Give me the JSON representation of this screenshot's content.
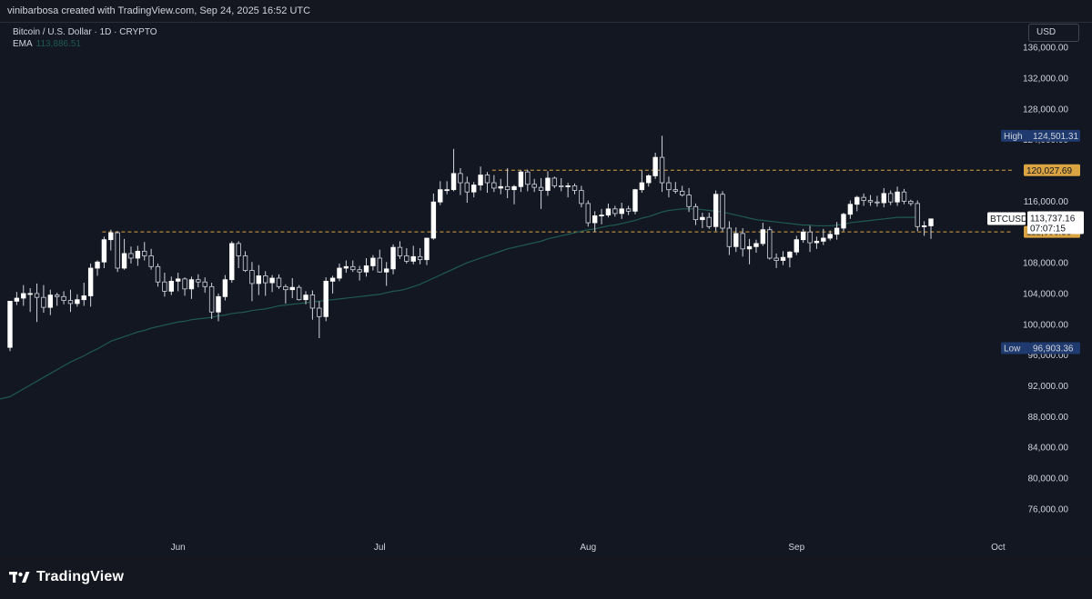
{
  "header": {
    "attribution": "vinibarbosa created with TradingView.com, Sep 24, 2025 16:52 UTC"
  },
  "legend": {
    "symbol_line": "Bitcoin / U.S. Dollar · 1D · CRYPTO",
    "ema_label": "EMA",
    "ema_value": "113,886.51"
  },
  "currency_button": "USD",
  "footer": {
    "logo_text": "TradingView"
  },
  "colors": {
    "background": "#131722",
    "candle_up": "#ffffff",
    "candle_down": "#131722",
    "candle_border": "#d1d4dc",
    "ema": "#1f5a52",
    "level_line": "#d9a441",
    "high_low_badge": "#1e3a6e"
  },
  "chart_data": {
    "type": "candlestick",
    "symbol": "BTCUSD",
    "interval": "1D",
    "ylim": [
      72800,
      139200
    ],
    "yticks": [
      76000,
      80000,
      84000,
      88000,
      92000,
      96000,
      100000,
      104000,
      108000,
      112000,
      116000,
      120000,
      124000,
      128000,
      132000,
      136000
    ],
    "ytick_labels": [
      "76,000.00",
      "80,000.00",
      "84,000.00",
      "88,000.00",
      "92,000.00",
      "96,000.00",
      "100,000.00",
      "104,000.00",
      "108,000.00",
      "112,000.00",
      "116,000.00",
      "120,000.00",
      "124,000.00",
      "128,000.00",
      "132,000.00",
      "136,000.00"
    ],
    "x_ticks": [
      "Jun",
      "Jul",
      "Aug",
      "Sep",
      "Oct"
    ],
    "x_tick_index": [
      25,
      55,
      86,
      117,
      147
    ],
    "candles": [
      {
        "o": 97000,
        "h": 103000,
        "l": 96500,
        "c": 103000
      },
      {
        "o": 103000,
        "h": 104200,
        "l": 102500,
        "c": 103400
      },
      {
        "o": 103400,
        "h": 105100,
        "l": 102400,
        "c": 104000
      },
      {
        "o": 104000,
        "h": 104700,
        "l": 101600,
        "c": 104000
      },
      {
        "o": 104000,
        "h": 105300,
        "l": 100300,
        "c": 103500
      },
      {
        "o": 103500,
        "h": 105100,
        "l": 101500,
        "c": 102200
      },
      {
        "o": 102200,
        "h": 104500,
        "l": 101200,
        "c": 103800
      },
      {
        "o": 103800,
        "h": 104100,
        "l": 102400,
        "c": 103600
      },
      {
        "o": 103600,
        "h": 104300,
        "l": 102600,
        "c": 103100
      },
      {
        "o": 103100,
        "h": 104500,
        "l": 101600,
        "c": 102700
      },
      {
        "o": 102700,
        "h": 103900,
        "l": 102300,
        "c": 103200
      },
      {
        "o": 103200,
        "h": 105400,
        "l": 102400,
        "c": 103700
      },
      {
        "o": 103700,
        "h": 107900,
        "l": 102300,
        "c": 107300
      },
      {
        "o": 107300,
        "h": 108300,
        "l": 106300,
        "c": 108100
      },
      {
        "o": 108100,
        "h": 111400,
        "l": 107300,
        "c": 111000
      },
      {
        "o": 111000,
        "h": 112300,
        "l": 109600,
        "c": 111900
      },
      {
        "o": 111900,
        "h": 112100,
        "l": 106800,
        "c": 107300
      },
      {
        "o": 107300,
        "h": 111100,
        "l": 107100,
        "c": 109200
      },
      {
        "o": 109200,
        "h": 110100,
        "l": 107900,
        "c": 108600
      },
      {
        "o": 108600,
        "h": 110200,
        "l": 107600,
        "c": 109500
      },
      {
        "o": 109500,
        "h": 110700,
        "l": 108300,
        "c": 108900
      },
      {
        "o": 108900,
        "h": 109800,
        "l": 107100,
        "c": 107500
      },
      {
        "o": 107500,
        "h": 107900,
        "l": 104900,
        "c": 105500
      },
      {
        "o": 105500,
        "h": 106700,
        "l": 103600,
        "c": 104300
      },
      {
        "o": 104300,
        "h": 106200,
        "l": 103800,
        "c": 105600
      },
      {
        "o": 105600,
        "h": 106700,
        "l": 104300,
        "c": 105900
      },
      {
        "o": 105900,
        "h": 106100,
        "l": 103700,
        "c": 104600
      },
      {
        "o": 104600,
        "h": 106200,
        "l": 103300,
        "c": 105800
      },
      {
        "o": 105800,
        "h": 106500,
        "l": 104800,
        "c": 105500
      },
      {
        "o": 105500,
        "h": 106100,
        "l": 104100,
        "c": 104900
      },
      {
        "o": 104900,
        "h": 105400,
        "l": 100700,
        "c": 101600
      },
      {
        "o": 101600,
        "h": 104000,
        "l": 100400,
        "c": 103600
      },
      {
        "o": 103600,
        "h": 106400,
        "l": 103100,
        "c": 105800
      },
      {
        "o": 105800,
        "h": 110800,
        "l": 105400,
        "c": 110500
      },
      {
        "o": 110500,
        "h": 110800,
        "l": 107300,
        "c": 108900
      },
      {
        "o": 108900,
        "h": 109500,
        "l": 106800,
        "c": 107000
      },
      {
        "o": 107000,
        "h": 108100,
        "l": 103000,
        "c": 105300
      },
      {
        "o": 105300,
        "h": 107700,
        "l": 103800,
        "c": 106300
      },
      {
        "o": 106300,
        "h": 106900,
        "l": 103700,
        "c": 105400
      },
      {
        "o": 105400,
        "h": 106400,
        "l": 104200,
        "c": 106000
      },
      {
        "o": 106000,
        "h": 106500,
        "l": 104600,
        "c": 104900
      },
      {
        "o": 104900,
        "h": 105200,
        "l": 102700,
        "c": 104500
      },
      {
        "o": 104500,
        "h": 106000,
        "l": 103400,
        "c": 104800
      },
      {
        "o": 104800,
        "h": 105100,
        "l": 103100,
        "c": 103200
      },
      {
        "o": 103200,
        "h": 104300,
        "l": 102600,
        "c": 103800
      },
      {
        "o": 103800,
        "h": 104400,
        "l": 100600,
        "c": 102100
      },
      {
        "o": 102100,
        "h": 103000,
        "l": 98200,
        "c": 101000
      },
      {
        "o": 101000,
        "h": 106100,
        "l": 100400,
        "c": 105600
      },
      {
        "o": 105600,
        "h": 106300,
        "l": 104000,
        "c": 106000
      },
      {
        "o": 106000,
        "h": 107900,
        "l": 105600,
        "c": 107300
      },
      {
        "o": 107300,
        "h": 108300,
        "l": 106700,
        "c": 107500
      },
      {
        "o": 107500,
        "h": 108300,
        "l": 106800,
        "c": 107100
      },
      {
        "o": 107100,
        "h": 107600,
        "l": 105700,
        "c": 106800
      },
      {
        "o": 106800,
        "h": 108600,
        "l": 106200,
        "c": 107600
      },
      {
        "o": 107600,
        "h": 109000,
        "l": 107000,
        "c": 108600
      },
      {
        "o": 108600,
        "h": 109700,
        "l": 106700,
        "c": 106800
      },
      {
        "o": 106800,
        "h": 108100,
        "l": 105000,
        "c": 107200
      },
      {
        "o": 107200,
        "h": 110400,
        "l": 106500,
        "c": 110000
      },
      {
        "o": 110000,
        "h": 110800,
        "l": 108500,
        "c": 108900
      },
      {
        "o": 108900,
        "h": 109900,
        "l": 107900,
        "c": 108200
      },
      {
        "o": 108200,
        "h": 110200,
        "l": 107800,
        "c": 108800
      },
      {
        "o": 108800,
        "h": 109900,
        "l": 107800,
        "c": 108400
      },
      {
        "o": 108400,
        "h": 111200,
        "l": 107700,
        "c": 111200
      },
      {
        "o": 111200,
        "h": 117000,
        "l": 111000,
        "c": 115900
      },
      {
        "o": 115900,
        "h": 118600,
        "l": 115500,
        "c": 117500
      },
      {
        "o": 117500,
        "h": 118600,
        "l": 116900,
        "c": 117500
      },
      {
        "o": 117500,
        "h": 122800,
        "l": 117300,
        "c": 119600
      },
      {
        "o": 119600,
        "h": 120300,
        "l": 116800,
        "c": 118400
      },
      {
        "o": 118400,
        "h": 119200,
        "l": 115800,
        "c": 117200
      },
      {
        "o": 117200,
        "h": 118500,
        "l": 116500,
        "c": 118100
      },
      {
        "o": 118100,
        "h": 120500,
        "l": 117400,
        "c": 119400
      },
      {
        "o": 119400,
        "h": 119800,
        "l": 117100,
        "c": 118400
      },
      {
        "o": 118400,
        "h": 119400,
        "l": 117200,
        "c": 117700
      },
      {
        "o": 117700,
        "h": 118900,
        "l": 116900,
        "c": 117900
      },
      {
        "o": 117900,
        "h": 120300,
        "l": 116400,
        "c": 117500
      },
      {
        "o": 117500,
        "h": 118100,
        "l": 115600,
        "c": 117900
      },
      {
        "o": 117900,
        "h": 120000,
        "l": 117200,
        "c": 119800
      },
      {
        "o": 119800,
        "h": 120100,
        "l": 117300,
        "c": 118200
      },
      {
        "o": 118200,
        "h": 118900,
        "l": 117200,
        "c": 117800
      },
      {
        "o": 117800,
        "h": 119000,
        "l": 115000,
        "c": 117400
      },
      {
        "o": 117400,
        "h": 119900,
        "l": 116700,
        "c": 119000
      },
      {
        "o": 119000,
        "h": 119200,
        "l": 117700,
        "c": 118000
      },
      {
        "o": 118000,
        "h": 119000,
        "l": 117300,
        "c": 117900
      },
      {
        "o": 117900,
        "h": 118400,
        "l": 116500,
        "c": 118000
      },
      {
        "o": 118000,
        "h": 118300,
        "l": 116900,
        "c": 117400
      },
      {
        "o": 117400,
        "h": 118000,
        "l": 115200,
        "c": 115700
      },
      {
        "o": 115700,
        "h": 116100,
        "l": 112700,
        "c": 113200
      },
      {
        "o": 113200,
        "h": 114700,
        "l": 112000,
        "c": 114100
      },
      {
        "o": 114100,
        "h": 115000,
        "l": 113000,
        "c": 114200
      },
      {
        "o": 114200,
        "h": 115700,
        "l": 113900,
        "c": 115000
      },
      {
        "o": 115000,
        "h": 115400,
        "l": 114000,
        "c": 114400
      },
      {
        "o": 114400,
        "h": 115800,
        "l": 113700,
        "c": 115000
      },
      {
        "o": 115000,
        "h": 115400,
        "l": 114200,
        "c": 114700
      },
      {
        "o": 114700,
        "h": 117600,
        "l": 114300,
        "c": 117500
      },
      {
        "o": 117500,
        "h": 120000,
        "l": 117100,
        "c": 118400
      },
      {
        "o": 118400,
        "h": 119500,
        "l": 117900,
        "c": 119300
      },
      {
        "o": 119300,
        "h": 122300,
        "l": 118900,
        "c": 121700
      },
      {
        "o": 121700,
        "h": 124500,
        "l": 117200,
        "c": 118400
      },
      {
        "o": 118400,
        "h": 119200,
        "l": 116500,
        "c": 117500
      },
      {
        "o": 117500,
        "h": 118500,
        "l": 117000,
        "c": 117300
      },
      {
        "o": 117300,
        "h": 118000,
        "l": 116600,
        "c": 116800
      },
      {
        "o": 116800,
        "h": 117700,
        "l": 114600,
        "c": 115300
      },
      {
        "o": 115300,
        "h": 115700,
        "l": 112900,
        "c": 113600
      },
      {
        "o": 113600,
        "h": 114500,
        "l": 112500,
        "c": 113900
      },
      {
        "o": 113900,
        "h": 114500,
        "l": 112400,
        "c": 112700
      },
      {
        "o": 112700,
        "h": 117400,
        "l": 112100,
        "c": 116900
      },
      {
        "o": 116900,
        "h": 117300,
        "l": 112100,
        "c": 112500
      },
      {
        "o": 112500,
        "h": 113400,
        "l": 109000,
        "c": 110100
      },
      {
        "o": 110100,
        "h": 112600,
        "l": 109400,
        "c": 111800
      },
      {
        "o": 111800,
        "h": 112500,
        "l": 108800,
        "c": 109800
      },
      {
        "o": 109800,
        "h": 111100,
        "l": 107800,
        "c": 110100
      },
      {
        "o": 110100,
        "h": 111000,
        "l": 109300,
        "c": 110500
      },
      {
        "o": 110500,
        "h": 113200,
        "l": 110200,
        "c": 112300
      },
      {
        "o": 112300,
        "h": 112700,
        "l": 108400,
        "c": 108600
      },
      {
        "o": 108600,
        "h": 109200,
        "l": 107300,
        "c": 108300
      },
      {
        "o": 108300,
        "h": 109500,
        "l": 107700,
        "c": 108700
      },
      {
        "o": 108700,
        "h": 109500,
        "l": 107400,
        "c": 109400
      },
      {
        "o": 109400,
        "h": 111500,
        "l": 109000,
        "c": 111000
      },
      {
        "o": 111000,
        "h": 112400,
        "l": 110600,
        "c": 112000
      },
      {
        "o": 112000,
        "h": 112800,
        "l": 109400,
        "c": 110600
      },
      {
        "o": 110600,
        "h": 111400,
        "l": 109800,
        "c": 110800
      },
      {
        "o": 110800,
        "h": 112400,
        "l": 110300,
        "c": 111200
      },
      {
        "o": 111200,
        "h": 112200,
        "l": 110900,
        "c": 111700
      },
      {
        "o": 111700,
        "h": 113300,
        "l": 111000,
        "c": 112500
      },
      {
        "o": 112500,
        "h": 114500,
        "l": 112100,
        "c": 114300
      },
      {
        "o": 114300,
        "h": 116100,
        "l": 113700,
        "c": 115600
      },
      {
        "o": 115600,
        "h": 116700,
        "l": 114700,
        "c": 116500
      },
      {
        "o": 116500,
        "h": 117000,
        "l": 115400,
        "c": 116100
      },
      {
        "o": 116100,
        "h": 116800,
        "l": 115400,
        "c": 115900
      },
      {
        "o": 115900,
        "h": 116700,
        "l": 115300,
        "c": 115800
      },
      {
        "o": 115800,
        "h": 117700,
        "l": 115200,
        "c": 117000
      },
      {
        "o": 117000,
        "h": 117400,
        "l": 115500,
        "c": 115900
      },
      {
        "o": 115900,
        "h": 117900,
        "l": 115400,
        "c": 117200
      },
      {
        "o": 117200,
        "h": 117600,
        "l": 115600,
        "c": 116000
      },
      {
        "o": 116000,
        "h": 116200,
        "l": 115400,
        "c": 115700
      },
      {
        "o": 115700,
        "h": 116100,
        "l": 112100,
        "c": 112700
      },
      {
        "o": 112700,
        "h": 113400,
        "l": 111500,
        "c": 112800
      },
      {
        "o": 112800,
        "h": 113700,
        "l": 111100,
        "c": 113700
      }
    ],
    "ema": [
      90600,
      91100,
      91600,
      92100,
      92600,
      93100,
      93600,
      94100,
      94600,
      95100,
      95500,
      95900,
      96400,
      96800,
      97300,
      97800,
      98100,
      98400,
      98700,
      99000,
      99200,
      99500,
      99700,
      99900,
      100100,
      100300,
      100400,
      100600,
      100700,
      100800,
      100900,
      101100,
      101200,
      101400,
      101500,
      101600,
      101800,
      101900,
      102000,
      102200,
      102400,
      102500,
      102600,
      102700,
      102800,
      102900,
      103000,
      103100,
      103200,
      103300,
      103400,
      103500,
      103600,
      103700,
      103800,
      103900,
      104100,
      104300,
      104400,
      104600,
      104900,
      105200,
      105600,
      106000,
      106400,
      106800,
      107200,
      107600,
      108000,
      108300,
      108600,
      108900,
      109200,
      109500,
      109800,
      110000,
      110200,
      110400,
      110600,
      110800,
      111100,
      111300,
      111500,
      111700,
      111900,
      112100,
      112300,
      112400,
      112600,
      112800,
      112900,
      113100,
      113300,
      113500,
      113800,
      114000,
      114300,
      114600,
      114800,
      114900,
      115000,
      115000,
      115000,
      114900,
      114800,
      114700,
      114600,
      114400,
      114200,
      114000,
      113800,
      113600,
      113500,
      113400,
      113300,
      113200,
      113100,
      113000,
      112900,
      112900,
      112800,
      112800,
      112800,
      112900,
      113000,
      113200,
      113300,
      113400,
      113500,
      113600,
      113700,
      113800,
      113900,
      113900,
      113900,
      113900
    ],
    "levels": [
      {
        "value": 120027.69,
        "label": "120,027.69"
      },
      {
        "value": 112006.33,
        "label": "112,006.33"
      }
    ],
    "high": {
      "value": 124501.31,
      "label": "High",
      "value_label": "124,501.31"
    },
    "low": {
      "value": 96903.36,
      "label": "Low",
      "value_label": "96,903.36"
    },
    "last_price": {
      "symbol": "BTCUSD",
      "value": 113737.16,
      "value_label": "113,737.16",
      "countdown": "07:07:15"
    }
  }
}
